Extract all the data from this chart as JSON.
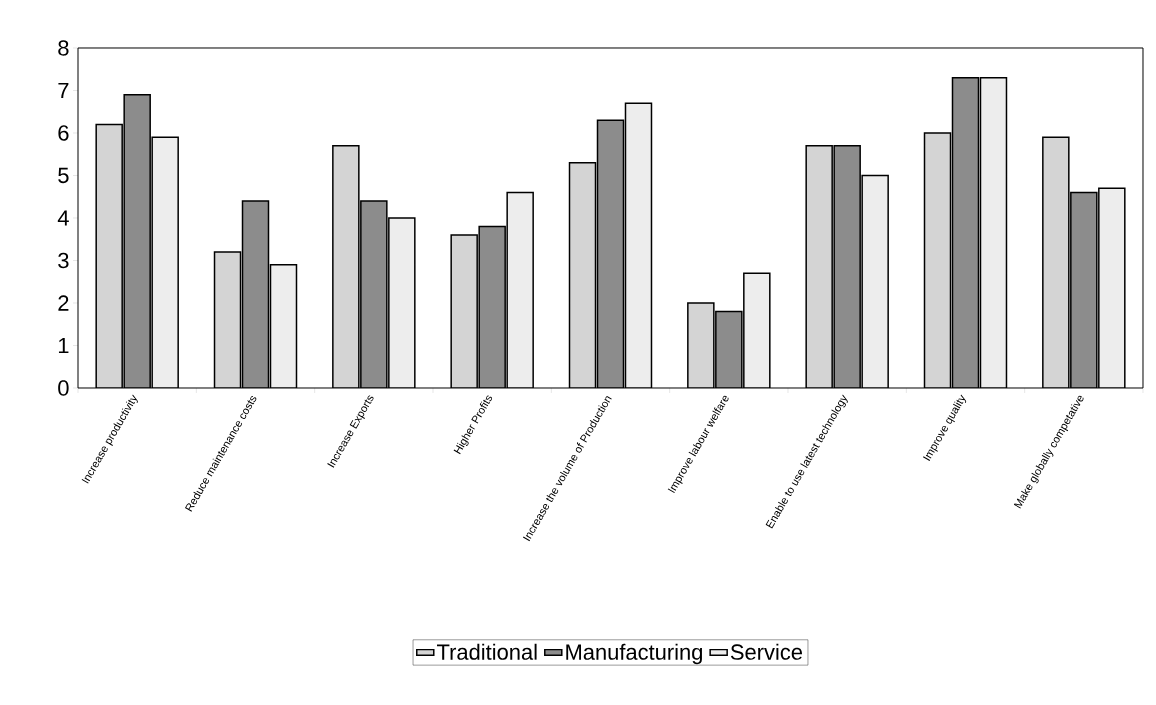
{
  "chart_data": {
    "type": "bar",
    "categories": [
      "Increase productivity",
      "Reduce maintenance costs",
      "Increase Exports",
      "Higher Profits",
      "Increase the volume of Production",
      "Improve labour welfare",
      "Enable to use latest technology",
      "Improve quality",
      "Make globally competative"
    ],
    "series": [
      {
        "name": "Traditional",
        "color": "#d4d4d4",
        "values": [
          6.2,
          3.2,
          5.7,
          3.6,
          5.3,
          2.0,
          5.7,
          6.0,
          5.9
        ]
      },
      {
        "name": "Manufacturing",
        "color": "#8c8c8c",
        "values": [
          6.9,
          4.4,
          4.4,
          3.8,
          6.3,
          1.8,
          5.7,
          7.3,
          4.6
        ]
      },
      {
        "name": "Service",
        "color": "#ededed",
        "values": [
          5.9,
          2.9,
          4.0,
          4.6,
          6.7,
          2.7,
          5.0,
          7.3,
          4.7
        ]
      }
    ],
    "ylim": [
      0,
      8
    ],
    "yticks": [
      0,
      1,
      2,
      3,
      4,
      5,
      6,
      7,
      8
    ],
    "grid": false,
    "legend": "bottom"
  }
}
